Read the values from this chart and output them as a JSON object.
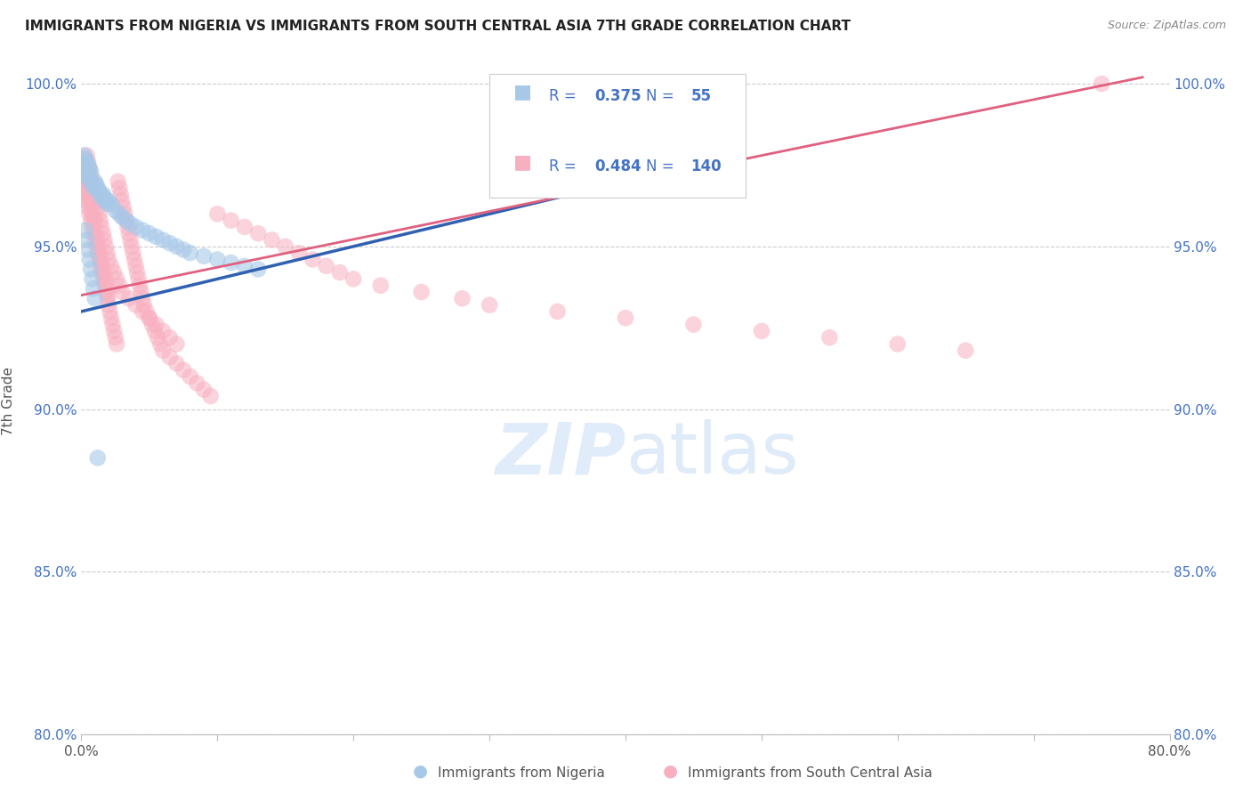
{
  "title": "IMMIGRANTS FROM NIGERIA VS IMMIGRANTS FROM SOUTH CENTRAL ASIA 7TH GRADE CORRELATION CHART",
  "source": "Source: ZipAtlas.com",
  "ylabel": "7th Grade",
  "legend_nigeria": "Immigrants from Nigeria",
  "legend_sca": "Immigrants from South Central Asia",
  "nigeria_R": 0.375,
  "nigeria_N": 55,
  "sca_R": 0.484,
  "sca_N": 140,
  "nigeria_color": "#a8c8e8",
  "nigeria_line_color": "#3060b0",
  "sca_color": "#f8b0c0",
  "sca_line_color": "#e06080",
  "xlim": [
    0.0,
    0.8
  ],
  "ylim": [
    0.8,
    1.005
  ],
  "xticks": [
    0.0,
    0.1,
    0.2,
    0.3,
    0.4,
    0.5,
    0.6,
    0.7,
    0.8
  ],
  "yticks": [
    0.8,
    0.85,
    0.9,
    0.95,
    1.0
  ],
  "ytick_labels": [
    "80.0%",
    "85.0%",
    "90.0%",
    "95.0%",
    "100.0%"
  ],
  "nigeria_x": [
    0.001,
    0.002,
    0.002,
    0.003,
    0.003,
    0.004,
    0.004,
    0.005,
    0.005,
    0.006,
    0.006,
    0.007,
    0.007,
    0.008,
    0.009,
    0.01,
    0.011,
    0.012,
    0.013,
    0.014,
    0.015,
    0.016,
    0.017,
    0.018,
    0.019,
    0.02,
    0.022,
    0.025,
    0.028,
    0.03,
    0.033,
    0.036,
    0.04,
    0.045,
    0.05,
    0.055,
    0.06,
    0.065,
    0.07,
    0.075,
    0.08,
    0.09,
    0.1,
    0.11,
    0.12,
    0.13,
    0.003,
    0.004,
    0.005,
    0.006,
    0.007,
    0.008,
    0.009,
    0.01,
    0.012
  ],
  "nigeria_y": [
    0.972,
    0.975,
    0.978,
    0.974,
    0.977,
    0.973,
    0.976,
    0.972,
    0.975,
    0.971,
    0.974,
    0.97,
    0.973,
    0.969,
    0.968,
    0.97,
    0.969,
    0.968,
    0.967,
    0.966,
    0.965,
    0.966,
    0.965,
    0.964,
    0.963,
    0.964,
    0.963,
    0.961,
    0.96,
    0.959,
    0.958,
    0.957,
    0.956,
    0.955,
    0.954,
    0.953,
    0.952,
    0.951,
    0.95,
    0.949,
    0.948,
    0.947,
    0.946,
    0.945,
    0.944,
    0.943,
    0.955,
    0.952,
    0.949,
    0.946,
    0.943,
    0.94,
    0.937,
    0.934,
    0.885
  ],
  "sca_x": [
    0.001,
    0.001,
    0.002,
    0.002,
    0.003,
    0.003,
    0.003,
    0.004,
    0.004,
    0.004,
    0.005,
    0.005,
    0.005,
    0.006,
    0.006,
    0.006,
    0.007,
    0.007,
    0.007,
    0.008,
    0.008,
    0.008,
    0.009,
    0.009,
    0.01,
    0.01,
    0.01,
    0.011,
    0.011,
    0.012,
    0.012,
    0.013,
    0.013,
    0.014,
    0.014,
    0.015,
    0.015,
    0.016,
    0.016,
    0.017,
    0.017,
    0.018,
    0.018,
    0.019,
    0.019,
    0.02,
    0.02,
    0.021,
    0.022,
    0.023,
    0.024,
    0.025,
    0.026,
    0.027,
    0.028,
    0.029,
    0.03,
    0.031,
    0.032,
    0.033,
    0.034,
    0.035,
    0.036,
    0.037,
    0.038,
    0.039,
    0.04,
    0.041,
    0.042,
    0.043,
    0.044,
    0.045,
    0.046,
    0.048,
    0.05,
    0.052,
    0.054,
    0.056,
    0.058,
    0.06,
    0.065,
    0.07,
    0.075,
    0.08,
    0.085,
    0.09,
    0.095,
    0.1,
    0.11,
    0.12,
    0.13,
    0.14,
    0.15,
    0.16,
    0.17,
    0.18,
    0.19,
    0.2,
    0.22,
    0.25,
    0.28,
    0.3,
    0.35,
    0.4,
    0.45,
    0.5,
    0.55,
    0.6,
    0.65,
    0.75,
    0.004,
    0.005,
    0.006,
    0.007,
    0.008,
    0.009,
    0.01,
    0.011,
    0.012,
    0.013,
    0.014,
    0.015,
    0.016,
    0.017,
    0.018,
    0.019,
    0.02,
    0.022,
    0.024,
    0.026,
    0.028,
    0.03,
    0.035,
    0.04,
    0.045,
    0.05,
    0.055,
    0.06,
    0.065,
    0.07
  ],
  "sca_y": [
    0.968,
    0.971,
    0.969,
    0.972,
    0.966,
    0.97,
    0.973,
    0.964,
    0.968,
    0.971,
    0.962,
    0.966,
    0.969,
    0.96,
    0.964,
    0.967,
    0.958,
    0.962,
    0.965,
    0.956,
    0.96,
    0.963,
    0.954,
    0.958,
    0.952,
    0.956,
    0.959,
    0.95,
    0.953,
    0.948,
    0.951,
    0.946,
    0.949,
    0.944,
    0.947,
    0.942,
    0.945,
    0.94,
    0.943,
    0.938,
    0.941,
    0.936,
    0.939,
    0.934,
    0.937,
    0.932,
    0.935,
    0.93,
    0.928,
    0.926,
    0.924,
    0.922,
    0.92,
    0.97,
    0.968,
    0.966,
    0.964,
    0.962,
    0.96,
    0.958,
    0.956,
    0.954,
    0.952,
    0.95,
    0.948,
    0.946,
    0.944,
    0.942,
    0.94,
    0.938,
    0.936,
    0.934,
    0.932,
    0.93,
    0.928,
    0.926,
    0.924,
    0.922,
    0.92,
    0.918,
    0.916,
    0.914,
    0.912,
    0.91,
    0.908,
    0.906,
    0.904,
    0.96,
    0.958,
    0.956,
    0.954,
    0.952,
    0.95,
    0.948,
    0.946,
    0.944,
    0.942,
    0.94,
    0.938,
    0.936,
    0.934,
    0.932,
    0.93,
    0.928,
    0.926,
    0.924,
    0.922,
    0.92,
    0.918,
    1.0,
    0.978,
    0.976,
    0.974,
    0.972,
    0.97,
    0.968,
    0.966,
    0.964,
    0.962,
    0.96,
    0.958,
    0.956,
    0.954,
    0.952,
    0.95,
    0.948,
    0.946,
    0.944,
    0.942,
    0.94,
    0.938,
    0.936,
    0.934,
    0.932,
    0.93,
    0.928,
    0.926,
    0.924,
    0.922,
    0.92
  ],
  "ng_trend_x0": 0.0,
  "ng_trend_x1": 0.45,
  "ng_trend_y0": 0.93,
  "ng_trend_y1": 0.975,
  "sc_trend_x0": 0.0,
  "sc_trend_x1": 0.78,
  "sc_trend_y0": 0.935,
  "sc_trend_y1": 1.002
}
